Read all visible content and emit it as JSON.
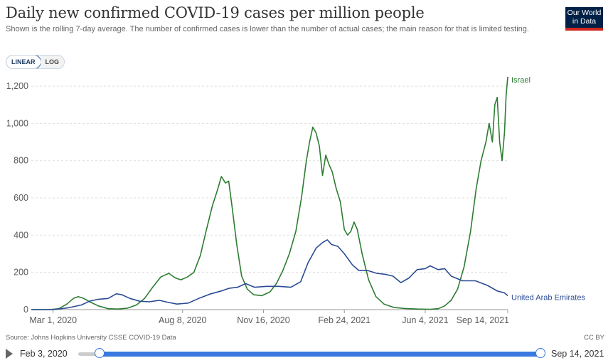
{
  "header": {
    "title": "Daily new confirmed COVID-19 cases per million people",
    "subtitle": "Shown is the rolling 7-day average. The number of confirmed cases is lower than the number of actual cases; the main reason for that is limited testing.",
    "logo_line1": "Our World",
    "logo_line2": "in Data"
  },
  "scale_toggle": {
    "linear": "LINEAR",
    "log": "LOG",
    "selected": "LINEAR"
  },
  "footer": {
    "source": "Source: Johns Hopkins University CSSE COVID-19 Data",
    "license": "CC BY"
  },
  "timeline": {
    "start_label": "Feb 3, 2020",
    "end_label": "Sep 14, 2021"
  },
  "colors": {
    "israel": "#2e7d32",
    "uae": "#2a4b94",
    "grid": "#dddddd",
    "axis_text": "#5b5b5b"
  },
  "chart_data": {
    "type": "line",
    "x_range": [
      "2020-02-03",
      "2021-09-14"
    ],
    "ylim": [
      0,
      1250
    ],
    "y_ticks": [
      0,
      200,
      400,
      600,
      800,
      1000,
      1200
    ],
    "y_tick_labels": [
      "0",
      "200",
      "400",
      "600",
      "800",
      "1,000",
      "1,200"
    ],
    "x_ticks": [
      {
        "date": "2020-03-01",
        "label": "Mar 1, 2020"
      },
      {
        "date": "2020-08-08",
        "label": "Aug 8, 2020"
      },
      {
        "date": "2020-11-16",
        "label": "Nov 16, 2020"
      },
      {
        "date": "2021-02-24",
        "label": "Feb 24, 2021"
      },
      {
        "date": "2021-06-04",
        "label": "Jun 4, 2021"
      },
      {
        "date": "2021-09-14",
        "label": "Sep 14, 2021"
      }
    ],
    "grid": true,
    "legend": "inline labels at line ends",
    "series": [
      {
        "name": "Israel",
        "points": [
          [
            "2020-02-03",
            0
          ],
          [
            "2020-02-25",
            0
          ],
          [
            "2020-03-08",
            5
          ],
          [
            "2020-03-18",
            30
          ],
          [
            "2020-03-26",
            60
          ],
          [
            "2020-04-01",
            70
          ],
          [
            "2020-04-08",
            60
          ],
          [
            "2020-04-16",
            40
          ],
          [
            "2020-04-26",
            20
          ],
          [
            "2020-05-08",
            5
          ],
          [
            "2020-05-20",
            3
          ],
          [
            "2020-06-01",
            8
          ],
          [
            "2020-06-12",
            25
          ],
          [
            "2020-06-22",
            60
          ],
          [
            "2020-07-02",
            120
          ],
          [
            "2020-07-12",
            175
          ],
          [
            "2020-07-22",
            195
          ],
          [
            "2020-07-30",
            170
          ],
          [
            "2020-08-06",
            160
          ],
          [
            "2020-08-14",
            175
          ],
          [
            "2020-08-22",
            200
          ],
          [
            "2020-08-30",
            290
          ],
          [
            "2020-09-06",
            420
          ],
          [
            "2020-09-14",
            560
          ],
          [
            "2020-09-20",
            640
          ],
          [
            "2020-09-25",
            715
          ],
          [
            "2020-09-30",
            680
          ],
          [
            "2020-10-04",
            690
          ],
          [
            "2020-10-08",
            560
          ],
          [
            "2020-10-14",
            350
          ],
          [
            "2020-10-20",
            180
          ],
          [
            "2020-10-27",
            110
          ],
          [
            "2020-11-04",
            80
          ],
          [
            "2020-11-14",
            75
          ],
          [
            "2020-11-24",
            95
          ],
          [
            "2020-12-02",
            140
          ],
          [
            "2020-12-10",
            210
          ],
          [
            "2020-12-18",
            300
          ],
          [
            "2020-12-26",
            420
          ],
          [
            "2021-01-02",
            600
          ],
          [
            "2021-01-08",
            800
          ],
          [
            "2021-01-12",
            900
          ],
          [
            "2021-01-16",
            980
          ],
          [
            "2021-01-20",
            950
          ],
          [
            "2021-01-24",
            880
          ],
          [
            "2021-01-28",
            720
          ],
          [
            "2021-02-01",
            830
          ],
          [
            "2021-02-05",
            780
          ],
          [
            "2021-02-09",
            740
          ],
          [
            "2021-02-14",
            650
          ],
          [
            "2021-02-19",
            580
          ],
          [
            "2021-02-24",
            430
          ],
          [
            "2021-02-28",
            400
          ],
          [
            "2021-03-04",
            420
          ],
          [
            "2021-03-08",
            470
          ],
          [
            "2021-03-12",
            430
          ],
          [
            "2021-03-18",
            300
          ],
          [
            "2021-03-26",
            160
          ],
          [
            "2021-04-04",
            70
          ],
          [
            "2021-04-14",
            30
          ],
          [
            "2021-04-26",
            12
          ],
          [
            "2021-05-10",
            6
          ],
          [
            "2021-05-26",
            3
          ],
          [
            "2021-06-10",
            2
          ],
          [
            "2021-06-20",
            5
          ],
          [
            "2021-06-28",
            20
          ],
          [
            "2021-07-06",
            50
          ],
          [
            "2021-07-14",
            110
          ],
          [
            "2021-07-22",
            230
          ],
          [
            "2021-07-30",
            420
          ],
          [
            "2021-08-06",
            650
          ],
          [
            "2021-08-12",
            800
          ],
          [
            "2021-08-18",
            900
          ],
          [
            "2021-08-22",
            1000
          ],
          [
            "2021-08-26",
            900
          ],
          [
            "2021-08-29",
            1100
          ],
          [
            "2021-09-01",
            1140
          ],
          [
            "2021-09-04",
            900
          ],
          [
            "2021-09-07",
            800
          ],
          [
            "2021-09-10",
            950
          ],
          [
            "2021-09-12",
            1150
          ],
          [
            "2021-09-14",
            1250
          ]
        ]
      },
      {
        "name": "United Arab Emirates",
        "points": [
          [
            "2020-02-03",
            0
          ],
          [
            "2020-03-01",
            0
          ],
          [
            "2020-03-20",
            10
          ],
          [
            "2020-04-05",
            25
          ],
          [
            "2020-04-15",
            45
          ],
          [
            "2020-04-25",
            55
          ],
          [
            "2020-05-08",
            60
          ],
          [
            "2020-05-18",
            85
          ],
          [
            "2020-05-25",
            80
          ],
          [
            "2020-06-04",
            60
          ],
          [
            "2020-06-16",
            45
          ],
          [
            "2020-06-28",
            42
          ],
          [
            "2020-07-10",
            50
          ],
          [
            "2020-07-20",
            40
          ],
          [
            "2020-08-01",
            30
          ],
          [
            "2020-08-15",
            35
          ],
          [
            "2020-08-28",
            60
          ],
          [
            "2020-09-12",
            85
          ],
          [
            "2020-09-25",
            100
          ],
          [
            "2020-10-05",
            115
          ],
          [
            "2020-10-15",
            120
          ],
          [
            "2020-10-25",
            140
          ],
          [
            "2020-11-05",
            120
          ],
          [
            "2020-11-20",
            125
          ],
          [
            "2020-12-05",
            125
          ],
          [
            "2020-12-20",
            120
          ],
          [
            "2021-01-01",
            150
          ],
          [
            "2021-01-10",
            250
          ],
          [
            "2021-01-20",
            330
          ],
          [
            "2021-01-28",
            360
          ],
          [
            "2021-02-03",
            375
          ],
          [
            "2021-02-08",
            350
          ],
          [
            "2021-02-16",
            340
          ],
          [
            "2021-02-24",
            300
          ],
          [
            "2021-03-06",
            240
          ],
          [
            "2021-03-14",
            210
          ],
          [
            "2021-03-25",
            210
          ],
          [
            "2021-04-05",
            195
          ],
          [
            "2021-04-15",
            190
          ],
          [
            "2021-04-25",
            180
          ],
          [
            "2021-05-05",
            145
          ],
          [
            "2021-05-15",
            170
          ],
          [
            "2021-05-25",
            215
          ],
          [
            "2021-06-04",
            220
          ],
          [
            "2021-06-10",
            235
          ],
          [
            "2021-06-20",
            215
          ],
          [
            "2021-06-28",
            220
          ],
          [
            "2021-07-06",
            180
          ],
          [
            "2021-07-20",
            155
          ],
          [
            "2021-08-05",
            155
          ],
          [
            "2021-08-20",
            130
          ],
          [
            "2021-09-01",
            100
          ],
          [
            "2021-09-10",
            90
          ],
          [
            "2021-09-14",
            75
          ]
        ]
      }
    ]
  }
}
